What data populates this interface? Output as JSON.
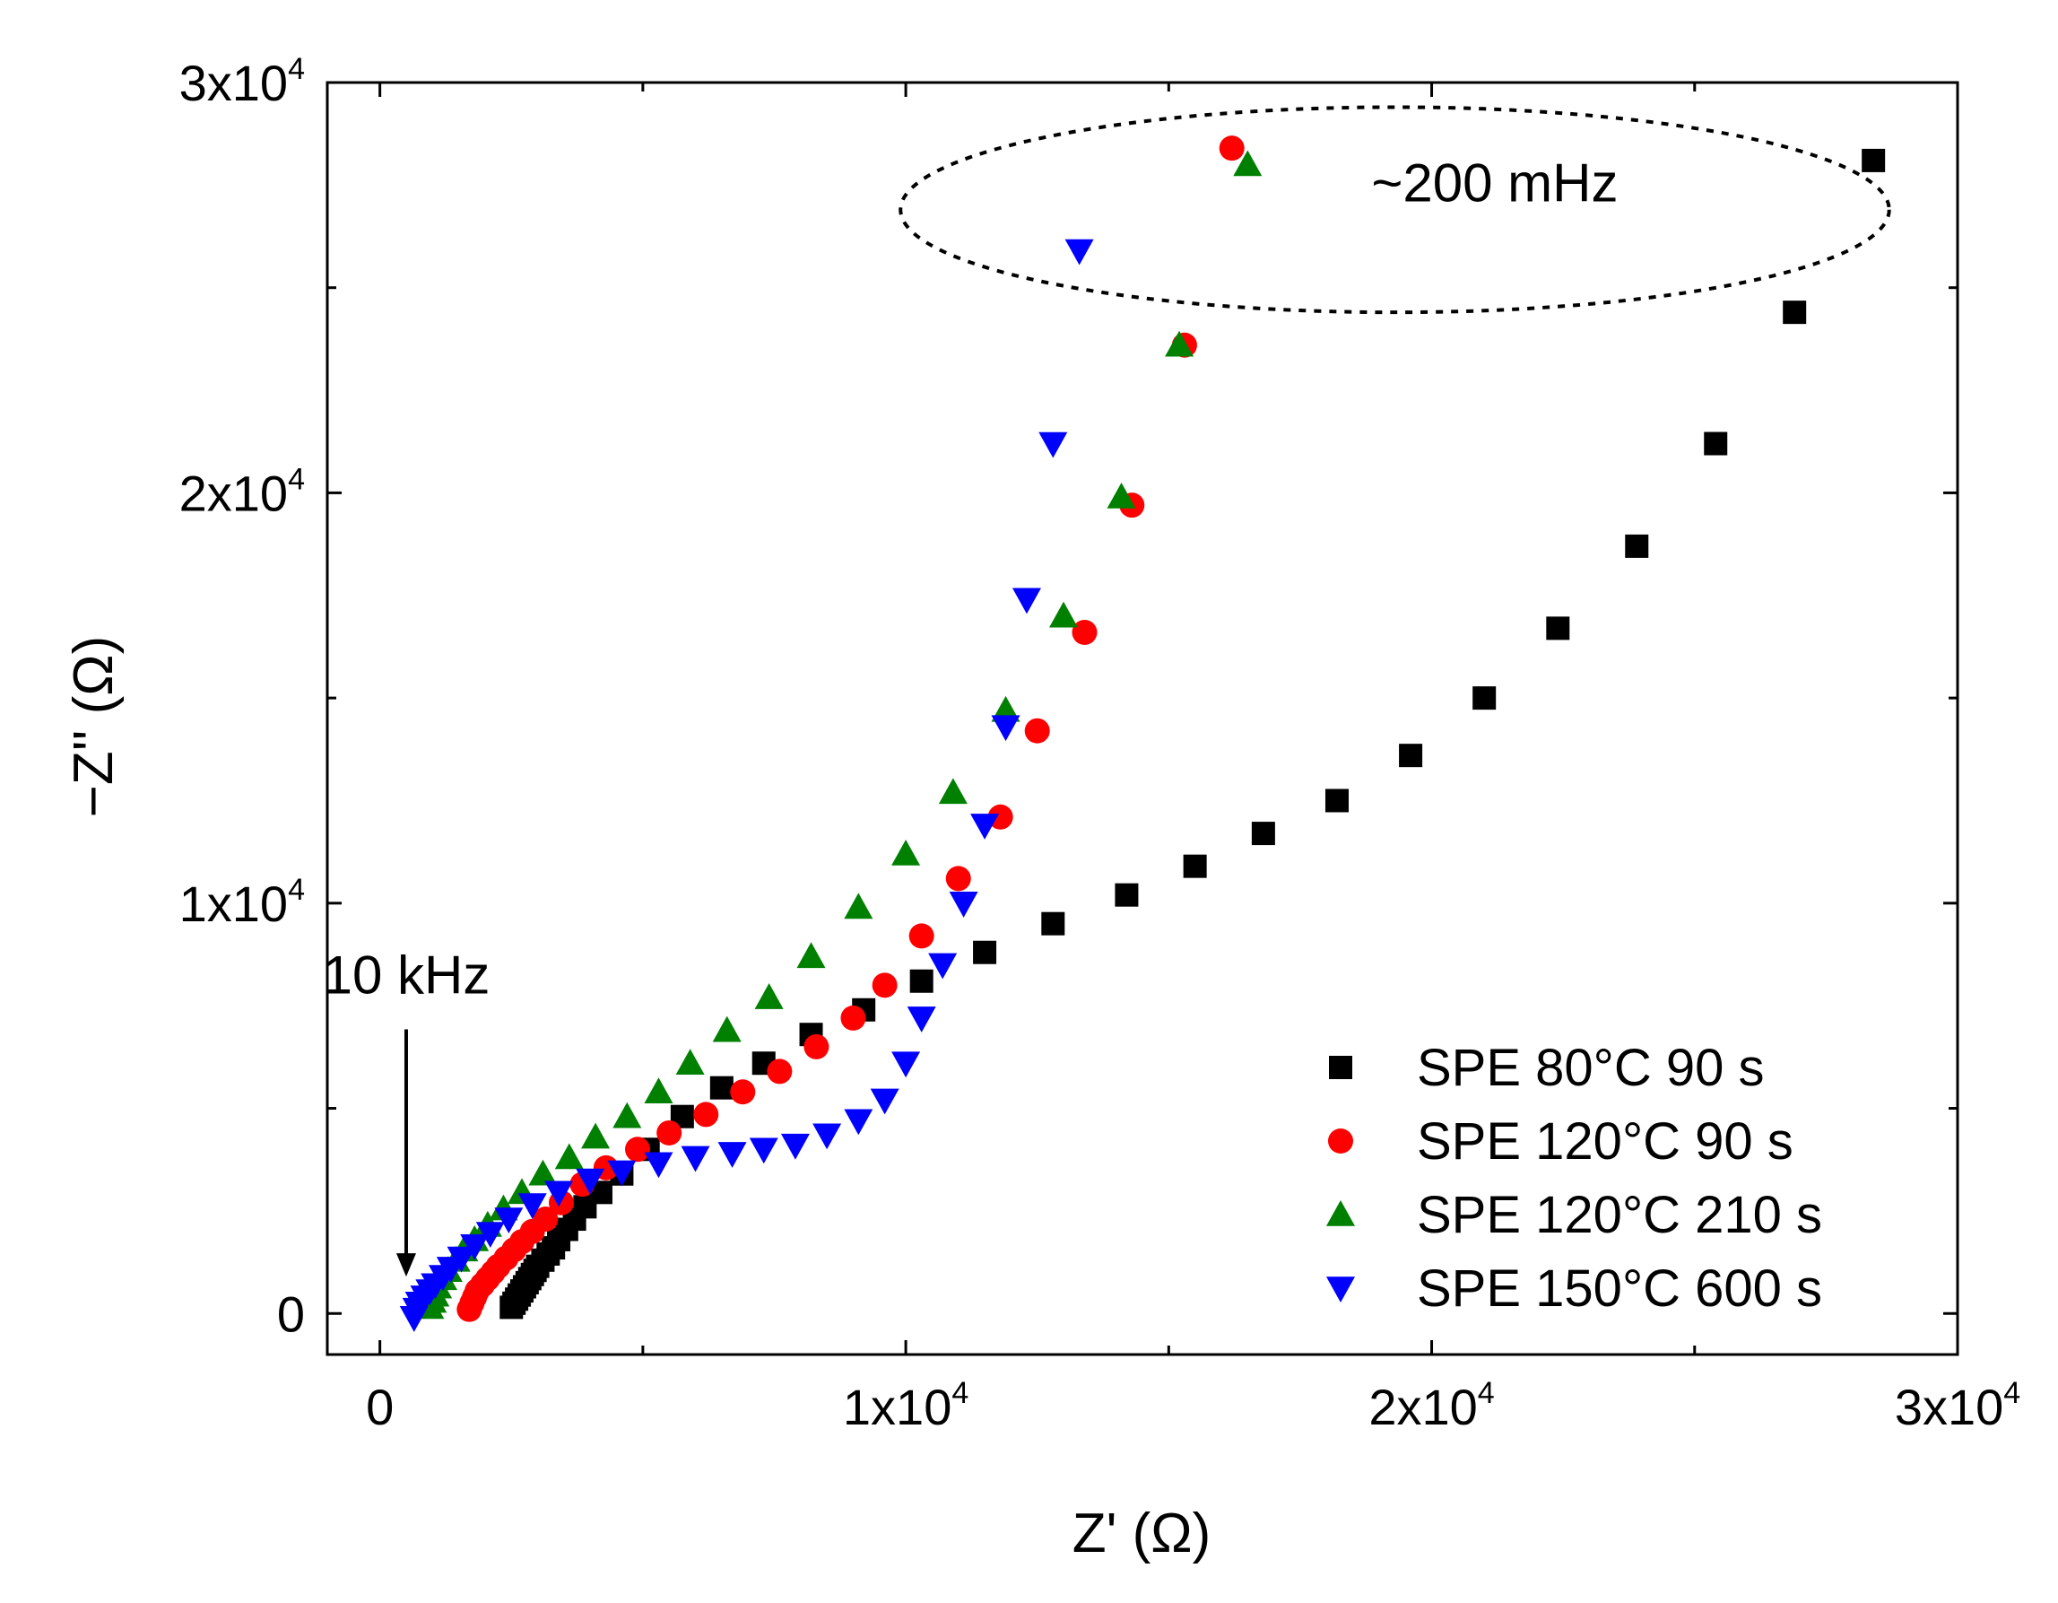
{
  "chart_data": {
    "type": "scatter",
    "title": "",
    "xlabel": "Z' (Ω)",
    "ylabel": "−Z'' (Ω)",
    "xlim": [
      -1000,
      30000
    ],
    "ylim": [
      -1000,
      30000
    ],
    "grid": false,
    "legend_position": "bottom-right",
    "x_ticks": [
      {
        "value": 0,
        "base": "0",
        "exp": ""
      },
      {
        "value": 10000,
        "base": "1x10",
        "exp": "4"
      },
      {
        "value": 20000,
        "base": "2x10",
        "exp": "4"
      },
      {
        "value": 30000,
        "base": "3x10",
        "exp": "4"
      }
    ],
    "y_ticks": [
      {
        "value": 0,
        "base": "0",
        "exp": ""
      },
      {
        "value": 10000,
        "base": "1x10",
        "exp": "4"
      },
      {
        "value": 20000,
        "base": "2x10",
        "exp": "4"
      },
      {
        "value": 30000,
        "base": "3x10",
        "exp": "4"
      }
    ],
    "annotations": [
      {
        "text": "10 kHz",
        "x": 500,
        "y": 7800,
        "arrow_to": [
          500,
          900
        ]
      },
      {
        "text": "~200 mHz",
        "x": 21200,
        "y": 27100,
        "ellipse": {
          "cx": 19300,
          "cy": 26900,
          "rx": 9400,
          "ry": 2500
        }
      }
    ],
    "series": [
      {
        "name": "SPE 80°C 90 s",
        "color": "#000000",
        "marker": "square",
        "points": [
          [
            2500,
            150
          ],
          [
            2550,
            250
          ],
          [
            2600,
            350
          ],
          [
            2650,
            450
          ],
          [
            2700,
            550
          ],
          [
            2750,
            650
          ],
          [
            2800,
            750
          ],
          [
            2850,
            850
          ],
          [
            2900,
            950
          ],
          [
            2950,
            1050
          ],
          [
            3000,
            1150
          ],
          [
            3100,
            1300
          ],
          [
            3200,
            1450
          ],
          [
            3300,
            1600
          ],
          [
            3400,
            1800
          ],
          [
            3550,
            2050
          ],
          [
            3700,
            2300
          ],
          [
            3900,
            2600
          ],
          [
            4200,
            2950
          ],
          [
            4600,
            3400
          ],
          [
            5100,
            4000
          ],
          [
            5750,
            4800
          ],
          [
            6500,
            5500
          ],
          [
            7300,
            6100
          ],
          [
            8200,
            6800
          ],
          [
            9200,
            7400
          ],
          [
            10300,
            8100
          ],
          [
            11500,
            8800
          ],
          [
            12800,
            9500
          ],
          [
            14200,
            10200
          ],
          [
            15500,
            10900
          ],
          [
            16800,
            11700
          ],
          [
            18200,
            12500
          ],
          [
            19600,
            13600
          ],
          [
            21000,
            15000
          ],
          [
            22400,
            16700
          ],
          [
            23900,
            18700
          ],
          [
            25400,
            21200
          ],
          [
            26900,
            24400
          ],
          [
            28400,
            28100
          ]
        ]
      },
      {
        "name": "SPE 120°C 90 s",
        "color": "#ff0000",
        "marker": "circle",
        "points": [
          [
            1700,
            100
          ],
          [
            1750,
            250
          ],
          [
            1800,
            400
          ],
          [
            1850,
            550
          ],
          [
            1950,
            700
          ],
          [
            2050,
            850
          ],
          [
            2150,
            1000
          ],
          [
            2250,
            1150
          ],
          [
            2400,
            1350
          ],
          [
            2550,
            1550
          ],
          [
            2700,
            1750
          ],
          [
            2900,
            2000
          ],
          [
            3150,
            2300
          ],
          [
            3450,
            2700
          ],
          [
            3850,
            3150
          ],
          [
            4300,
            3550
          ],
          [
            4900,
            4000
          ],
          [
            5500,
            4400
          ],
          [
            6200,
            4850
          ],
          [
            6900,
            5400
          ],
          [
            7600,
            5900
          ],
          [
            8300,
            6500
          ],
          [
            9000,
            7200
          ],
          [
            9600,
            8000
          ],
          [
            10300,
            9200
          ],
          [
            11000,
            10600
          ],
          [
            11800,
            12100
          ],
          [
            12500,
            14200
          ],
          [
            13400,
            16600
          ],
          [
            14300,
            19700
          ],
          [
            15300,
            23600
          ],
          [
            16200,
            28400
          ]
        ]
      },
      {
        "name": "SPE 120°C 210 s",
        "color": "#008000",
        "marker": "triangle-up",
        "points": [
          [
            950,
            150
          ],
          [
            1000,
            300
          ],
          [
            1050,
            450
          ],
          [
            1100,
            650
          ],
          [
            1200,
            850
          ],
          [
            1300,
            1050
          ],
          [
            1450,
            1300
          ],
          [
            1600,
            1550
          ],
          [
            1800,
            1800
          ],
          [
            2050,
            2150
          ],
          [
            2350,
            2550
          ],
          [
            2700,
            2950
          ],
          [
            3100,
            3400
          ],
          [
            3600,
            3800
          ],
          [
            4100,
            4300
          ],
          [
            4700,
            4800
          ],
          [
            5300,
            5400
          ],
          [
            5900,
            6100
          ],
          [
            6600,
            6900
          ],
          [
            7400,
            7700
          ],
          [
            8200,
            8700
          ],
          [
            9100,
            9900
          ],
          [
            10000,
            11200
          ],
          [
            10900,
            12700
          ],
          [
            11900,
            14700
          ],
          [
            13000,
            17000
          ],
          [
            14100,
            19900
          ],
          [
            15200,
            23600
          ],
          [
            16500,
            28000
          ]
        ]
      },
      {
        "name": "SPE 150°C 600 s",
        "color": "#0000ff",
        "marker": "triangle-down",
        "points": [
          [
            650,
            -100
          ],
          [
            700,
            100
          ],
          [
            750,
            250
          ],
          [
            850,
            400
          ],
          [
            950,
            550
          ],
          [
            1050,
            700
          ],
          [
            1200,
            900
          ],
          [
            1350,
            1100
          ],
          [
            1550,
            1350
          ],
          [
            1800,
            1650
          ],
          [
            2100,
            1950
          ],
          [
            2450,
            2300
          ],
          [
            2900,
            2650
          ],
          [
            3400,
            2950
          ],
          [
            4000,
            3250
          ],
          [
            4600,
            3450
          ],
          [
            5300,
            3650
          ],
          [
            6000,
            3800
          ],
          [
            6700,
            3900
          ],
          [
            7300,
            4000
          ],
          [
            7900,
            4100
          ],
          [
            8500,
            4350
          ],
          [
            9100,
            4700
          ],
          [
            9600,
            5200
          ],
          [
            10000,
            6100
          ],
          [
            10300,
            7200
          ],
          [
            10700,
            8500
          ],
          [
            11100,
            10000
          ],
          [
            11500,
            11900
          ],
          [
            11900,
            14300
          ],
          [
            12300,
            17400
          ],
          [
            12800,
            21200
          ],
          [
            13300,
            25900
          ]
        ]
      }
    ]
  }
}
